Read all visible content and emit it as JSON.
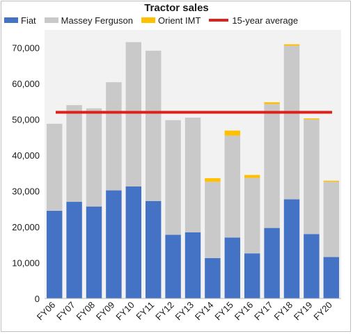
{
  "chart_data": {
    "type": "bar",
    "stacked": true,
    "title": "Tractor sales",
    "categories": [
      "FY06",
      "FY07",
      "FY08",
      "FY09",
      "FY10",
      "FY11",
      "FY12",
      "FY13",
      "FY14",
      "FY15",
      "FY16",
      "FY17",
      "FY18",
      "FY19",
      "FY20"
    ],
    "series": [
      {
        "name": "Fiat",
        "color": "#4472c4",
        "values": [
          24500,
          27000,
          25700,
          30200,
          31300,
          27200,
          17800,
          18500,
          11300,
          17000,
          12600,
          19700,
          27700,
          18000,
          11600
        ]
      },
      {
        "name": "Massey Ferguson",
        "color": "#c9c9c9",
        "values": [
          24300,
          27000,
          27400,
          30200,
          40300,
          42000,
          32000,
          32000,
          21300,
          28500,
          21100,
          34600,
          42900,
          32000,
          21000
        ]
      },
      {
        "name": "Orient IMT",
        "color": "#ffc000",
        "values": [
          0,
          0,
          0,
          0,
          0,
          0,
          0,
          0,
          1000,
          1400,
          800,
          500,
          400,
          300,
          300
        ]
      }
    ],
    "reference_line": {
      "name": "15-year average",
      "value": 52000,
      "color": "#e0201b"
    },
    "ylim": [
      0,
      75000
    ],
    "yticks": [
      0,
      10000,
      20000,
      30000,
      40000,
      50000,
      60000,
      70000
    ],
    "ytick_labels": [
      "0",
      "10,000",
      "20,000",
      "30,000",
      "40,000",
      "50,000",
      "60,000",
      "70,000"
    ],
    "xlabel": "",
    "ylabel": "",
    "legend_position": "top",
    "grid": false,
    "plot_background": "#f2f2f2"
  }
}
